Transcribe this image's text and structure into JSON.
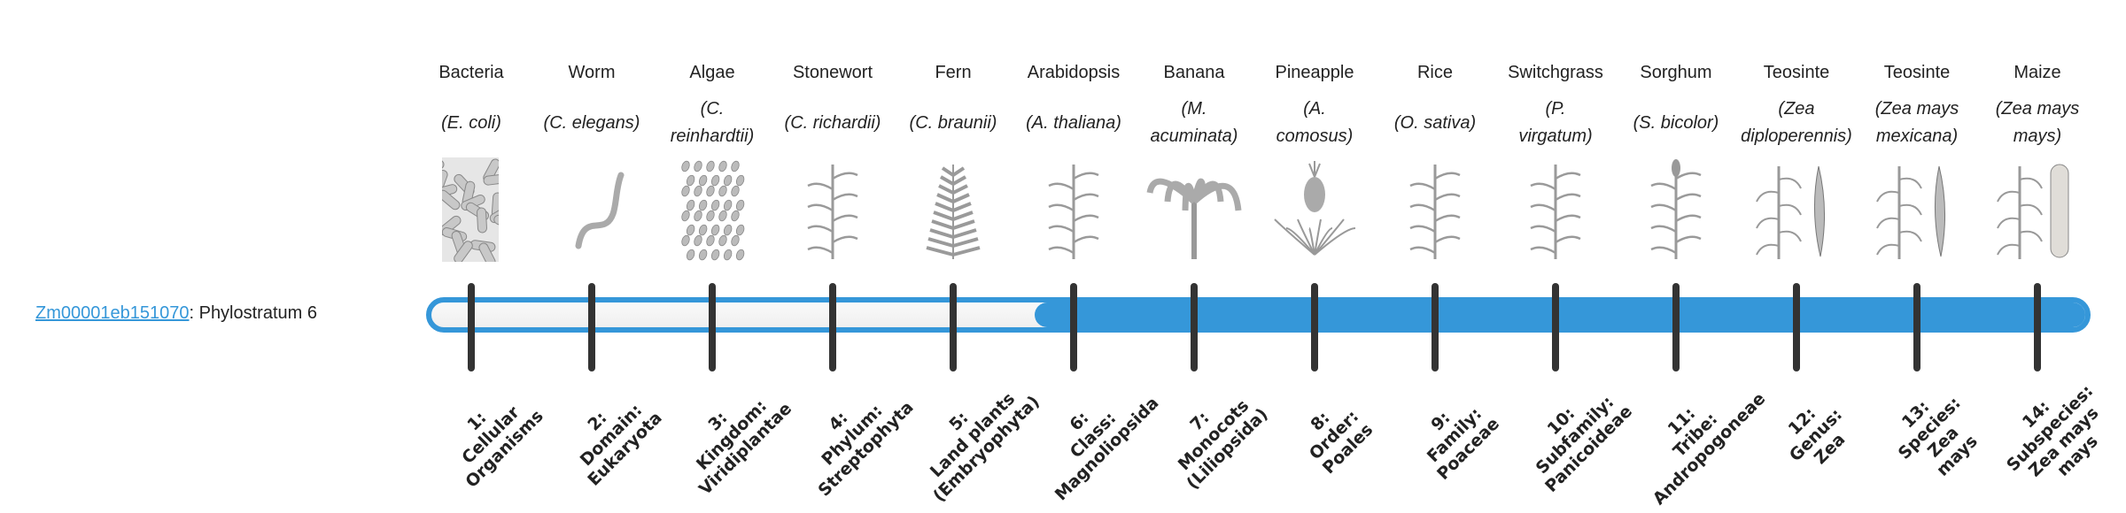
{
  "gene": {
    "id": "Zm00001eb151070",
    "suffix": ": Phylostratum 6"
  },
  "colors": {
    "accent": "#3597d9",
    "tick": "#333333"
  },
  "phylostratum_value": 6,
  "total_strata": 14,
  "strata": [
    {
      "common": "Bacteria",
      "species": "(E. coli)",
      "icon": "bacteria-icon",
      "rank": "1:\nCellular\nOrganisms"
    },
    {
      "common": "Worm",
      "species": "(C. elegans)",
      "icon": "worm-icon",
      "rank": "2:\nDomain:\nEukaryota"
    },
    {
      "common": "Algae",
      "species": "(C.\nreinhardtii)",
      "icon": "algae-icon",
      "rank": "3:\nKingdom:\nViridiplantae"
    },
    {
      "common": "Stonewort",
      "species": "(C. richardii)",
      "icon": "stonewort-icon",
      "rank": "4:\nPhylum:\nStreptophyta"
    },
    {
      "common": "Fern",
      "species": "(C. braunii)",
      "icon": "fern-icon",
      "rank": "5:\nLand plants\n(Embryophyta)"
    },
    {
      "common": "Arabidopsis",
      "species": "(A. thaliana)",
      "icon": "arabidopsis-icon",
      "rank": "6:\nClass:\nMagnoliopsida"
    },
    {
      "common": "Banana",
      "species": "(M.\nacuminata)",
      "icon": "banana-icon",
      "rank": "7:\nMonocots\n(Liliopsida)"
    },
    {
      "common": "Pineapple",
      "species": "(A.\ncomosus)",
      "icon": "pineapple-icon",
      "rank": "8:\nOrder:\nPoales"
    },
    {
      "common": "Rice",
      "species": "(O. sativa)",
      "icon": "rice-icon",
      "rank": "9:\nFamily:\nPoaceae"
    },
    {
      "common": "Switchgrass",
      "species": "(P.\nvirgatum)",
      "icon": "switchgrass-icon",
      "rank": "10:\nSubfamily:\nPanicoideae"
    },
    {
      "common": "Sorghum",
      "species": "(S. bicolor)",
      "icon": "sorghum-icon",
      "rank": "11:\nTribe:\nAndropogoneae"
    },
    {
      "common": "Teosinte",
      "species": "(Zea\ndiploperennis)",
      "icon": "teosinte-icon",
      "rank": "12:\nGenus:\nZea"
    },
    {
      "common": "Teosinte",
      "species": "(Zea mays\nmexicana)",
      "icon": "teosinte-icon",
      "rank": "13:\nSpecies:\nZea\nmays"
    },
    {
      "common": "Maize",
      "species": "(Zea mays\nmays)",
      "icon": "maize-icon",
      "rank": "14:\nSubspecies:\nZea mays\nmays"
    }
  ]
}
